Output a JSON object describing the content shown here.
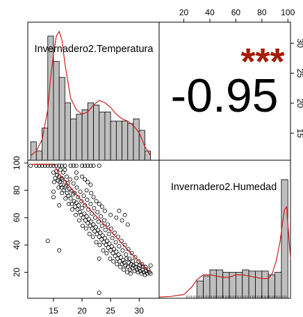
{
  "colors": {
    "bar_fill": "#bebebe",
    "bar_stroke": "#000000",
    "density_line": "#cc1f1f",
    "fit_line": "#cc1f1f",
    "stars": "#a51d0a",
    "points": "#000000"
  },
  "chart_data": {
    "type": "scatter-matrix",
    "variables": [
      "Invernadero2.Temperatura",
      "Invernadero2.Humedad"
    ],
    "titles": {
      "temperature": "Invernadero2.Temperatura",
      "humidity": "Invernadero2.Humedad"
    },
    "correlation": {
      "value_label": "-0.95",
      "stars": "***"
    },
    "x_axis_bottom": {
      "ticks": [
        "15",
        "20",
        "25",
        "30"
      ],
      "range": [
        10.5,
        33.5
      ]
    },
    "x_axis_top": {
      "ticks": [
        "20",
        "40",
        "60",
        "80",
        "100"
      ],
      "range": [
        1,
        102
      ]
    },
    "y_axis_left": {
      "ticks": [
        "20",
        "40",
        "60",
        "80",
        "100"
      ],
      "range": [
        1,
        102
      ]
    },
    "y_axis_right": {
      "ticks": [
        "15",
        "20",
        "25",
        "30"
      ],
      "range": [
        10.5,
        33.5
      ]
    },
    "temperature_histogram": {
      "bin_edges": [
        11,
        12,
        13,
        14,
        15,
        16,
        17,
        18,
        19,
        20,
        21,
        22,
        23,
        24,
        25,
        26,
        27,
        28,
        29,
        30,
        31,
        32
      ],
      "counts": [
        8,
        4,
        14,
        54,
        43,
        36,
        25,
        18,
        20,
        22,
        25,
        24,
        21,
        21,
        17,
        17,
        17,
        16,
        18,
        13,
        4
      ],
      "density": [
        [
          11,
          2
        ],
        [
          12,
          4
        ],
        [
          13,
          9
        ],
        [
          14,
          22
        ],
        [
          14.5,
          36
        ],
        [
          15,
          46
        ],
        [
          15.5,
          54
        ],
        [
          16,
          56
        ],
        [
          16.5,
          52
        ],
        [
          17,
          42
        ],
        [
          18,
          27
        ],
        [
          19,
          22
        ],
        [
          20,
          20
        ],
        [
          21,
          21
        ],
        [
          22,
          24
        ],
        [
          23,
          26
        ],
        [
          24,
          25
        ],
        [
          25,
          23
        ],
        [
          26,
          20
        ],
        [
          27,
          18
        ],
        [
          28,
          17
        ],
        [
          29,
          15
        ],
        [
          30,
          12
        ],
        [
          31,
          6
        ],
        [
          32,
          2
        ]
      ]
    },
    "humidity_histogram": {
      "bin_edges": [
        25,
        30,
        35,
        40,
        45,
        50,
        55,
        60,
        65,
        70,
        75,
        80,
        85,
        90,
        95,
        100
      ],
      "counts": [
        null,
        14,
        18,
        23,
        23,
        21,
        21,
        21,
        23,
        22,
        22,
        22,
        19,
        21,
        96
      ],
      "density": [
        [
          1,
          1
        ],
        [
          10,
          1.5
        ],
        [
          20,
          3
        ],
        [
          26,
          9
        ],
        [
          30,
          15
        ],
        [
          35,
          19
        ],
        [
          40,
          19
        ],
        [
          45,
          18
        ],
        [
          50,
          17
        ],
        [
          55,
          17
        ],
        [
          60,
          19
        ],
        [
          65,
          19
        ],
        [
          70,
          18
        ],
        [
          75,
          17
        ],
        [
          80,
          16
        ],
        [
          85,
          16
        ],
        [
          88,
          20
        ],
        [
          91,
          30
        ],
        [
          94,
          46
        ],
        [
          96,
          62
        ],
        [
          97.5,
          72
        ],
        [
          99,
          74
        ],
        [
          100,
          60
        ],
        [
          102,
          32
        ]
      ]
    },
    "fit_line": [
      [
        11,
        99
      ],
      [
        15,
        99
      ],
      [
        16,
        92
      ],
      [
        20,
        72
      ],
      [
        25,
        50
      ],
      [
        29,
        32
      ],
      [
        32,
        20
      ]
    ],
    "scatter_points": [
      [
        11,
        98
      ],
      [
        12,
        98
      ],
      [
        12.5,
        98
      ],
      [
        13,
        98
      ],
      [
        13.5,
        98
      ],
      [
        14,
        98
      ],
      [
        14.5,
        98
      ],
      [
        15,
        98
      ],
      [
        15.5,
        98
      ],
      [
        16,
        98
      ],
      [
        16.5,
        98
      ],
      [
        17,
        98
      ],
      [
        18,
        98
      ],
      [
        18.5,
        98
      ],
      [
        19,
        98
      ],
      [
        20,
        98
      ],
      [
        20.5,
        98
      ],
      [
        21,
        98
      ],
      [
        21.5,
        98
      ],
      [
        22,
        98
      ],
      [
        23,
        98
      ],
      [
        15,
        93
      ],
      [
        15.5,
        94
      ],
      [
        15.6,
        91
      ],
      [
        15.3,
        89
      ],
      [
        15.8,
        87
      ],
      [
        16,
        90
      ],
      [
        16.1,
        86
      ],
      [
        16.3,
        84
      ],
      [
        16.4,
        82
      ],
      [
        16.6,
        88
      ],
      [
        16.8,
        80
      ],
      [
        17,
        86
      ],
      [
        17.2,
        83
      ],
      [
        17.4,
        78
      ],
      [
        17.6,
        76
      ],
      [
        17.8,
        81
      ],
      [
        18,
        74
      ],
      [
        18.2,
        70
      ],
      [
        18.4,
        77
      ],
      [
        18.6,
        72
      ],
      [
        18.8,
        68
      ],
      [
        19,
        71
      ],
      [
        19.2,
        66
      ],
      [
        19.4,
        69
      ],
      [
        19.6,
        64
      ],
      [
        19.8,
        62
      ],
      [
        20,
        67
      ],
      [
        20.2,
        60
      ],
      [
        20.4,
        63
      ],
      [
        20.6,
        58
      ],
      [
        20.8,
        61
      ],
      [
        21,
        56
      ],
      [
        21.2,
        59
      ],
      [
        21.4,
        54
      ],
      [
        21.6,
        57
      ],
      [
        21.8,
        52
      ],
      [
        22,
        55
      ],
      [
        22.2,
        50
      ],
      [
        22.4,
        53
      ],
      [
        22.6,
        48
      ],
      [
        22.8,
        51
      ],
      [
        23,
        46
      ],
      [
        23.2,
        49
      ],
      [
        23.4,
        44
      ],
      [
        23.6,
        47
      ],
      [
        23.8,
        42
      ],
      [
        24,
        45
      ],
      [
        24.2,
        40
      ],
      [
        24.4,
        43
      ],
      [
        24.6,
        38
      ],
      [
        24.8,
        41
      ],
      [
        25,
        36
      ],
      [
        25.2,
        39
      ],
      [
        25.4,
        34
      ],
      [
        25.6,
        37
      ],
      [
        25.8,
        32
      ],
      [
        26,
        35
      ],
      [
        26.2,
        30
      ],
      [
        26.4,
        33
      ],
      [
        26.6,
        28
      ],
      [
        26.8,
        31
      ],
      [
        27,
        26
      ],
      [
        27.2,
        29
      ],
      [
        27.4,
        27
      ],
      [
        27.6,
        25
      ],
      [
        27.8,
        30
      ],
      [
        28,
        24
      ],
      [
        28.2,
        27
      ],
      [
        28.4,
        22
      ],
      [
        28.6,
        26
      ],
      [
        28.8,
        23
      ],
      [
        29,
        25
      ],
      [
        29.2,
        21
      ],
      [
        29.4,
        24
      ],
      [
        29.6,
        22
      ],
      [
        29.8,
        20
      ],
      [
        30,
        23
      ],
      [
        30.2,
        21
      ],
      [
        30.4,
        19
      ],
      [
        30.6,
        22
      ],
      [
        30.8,
        20
      ],
      [
        31,
        18
      ],
      [
        31.2,
        21
      ],
      [
        31.4,
        19
      ],
      [
        31.6,
        22
      ],
      [
        31.8,
        20
      ],
      [
        32,
        25
      ],
      [
        32,
        19
      ],
      [
        16.2,
        95
      ],
      [
        16.7,
        93
      ],
      [
        17.3,
        90
      ],
      [
        17.9,
        88
      ],
      [
        18.5,
        85
      ],
      [
        19.1,
        82
      ],
      [
        19.7,
        79
      ],
      [
        20.3,
        76
      ],
      [
        20.9,
        73
      ],
      [
        21.5,
        70
      ],
      [
        22.1,
        67
      ],
      [
        22.7,
        64
      ],
      [
        23.3,
        61
      ],
      [
        23.9,
        58
      ],
      [
        24.5,
        55
      ],
      [
        25.1,
        52
      ],
      [
        25.7,
        49
      ],
      [
        26.3,
        46
      ],
      [
        26.9,
        43
      ],
      [
        27.5,
        40
      ],
      [
        28.1,
        37
      ],
      [
        28.7,
        34
      ],
      [
        29.3,
        31
      ],
      [
        29.9,
        28
      ],
      [
        30.5,
        26
      ],
      [
        31.1,
        24
      ],
      [
        15.1,
        86
      ],
      [
        15.9,
        82
      ],
      [
        16.5,
        78
      ],
      [
        17.1,
        74
      ],
      [
        17.7,
        70
      ],
      [
        18.3,
        66
      ],
      [
        18.9,
        62
      ],
      [
        19.5,
        58
      ],
      [
        20.1,
        54
      ],
      [
        20.7,
        52
      ],
      [
        21.3,
        48
      ],
      [
        21.9,
        46
      ],
      [
        22.5,
        42
      ],
      [
        23.1,
        40
      ],
      [
        23.7,
        36
      ],
      [
        24.3,
        34
      ],
      [
        24.9,
        30
      ],
      [
        25.5,
        28
      ],
      [
        26.1,
        26
      ],
      [
        26.7,
        24
      ],
      [
        27.3,
        22
      ],
      [
        27.9,
        20
      ],
      [
        28.5,
        19
      ],
      [
        16.4,
        89
      ],
      [
        17.5,
        85
      ],
      [
        18.1,
        80
      ],
      [
        18.7,
        78
      ],
      [
        19.3,
        75
      ],
      [
        19.9,
        72
      ],
      [
        20.5,
        69
      ],
      [
        21.1,
        66
      ],
      [
        21.7,
        63
      ],
      [
        22.3,
        60
      ],
      [
        22.9,
        57
      ],
      [
        23.5,
        54
      ],
      [
        24.1,
        51
      ],
      [
        24.7,
        48
      ],
      [
        25.3,
        45
      ],
      [
        25.9,
        42
      ],
      [
        26.5,
        39
      ],
      [
        27.1,
        36
      ],
      [
        27.7,
        33
      ],
      [
        28.3,
        30
      ],
      [
        28.9,
        28
      ],
      [
        29.5,
        26
      ],
      [
        30.1,
        25
      ],
      [
        30.7,
        24
      ],
      [
        20,
        90
      ],
      [
        20.5,
        88
      ],
      [
        21,
        86
      ],
      [
        21.5,
        84
      ],
      [
        20.8,
        80
      ],
      [
        21.6,
        78
      ],
      [
        22,
        75
      ],
      [
        22.5,
        72
      ],
      [
        23,
        70
      ],
      [
        23.5,
        68
      ],
      [
        24,
        65
      ],
      [
        25,
        62
      ],
      [
        26,
        60
      ],
      [
        27,
        58
      ],
      [
        26.5,
        65
      ],
      [
        27.5,
        62
      ],
      [
        28,
        55
      ],
      [
        14,
        43
      ],
      [
        16,
        36
      ],
      [
        23,
        30
      ],
      [
        23,
        5
      ],
      [
        17,
        82
      ],
      [
        17,
        95
      ],
      [
        19,
        93
      ],
      [
        19,
        89
      ],
      [
        16,
        69
      ],
      [
        15,
        79
      ],
      [
        15,
        75
      ]
    ]
  }
}
